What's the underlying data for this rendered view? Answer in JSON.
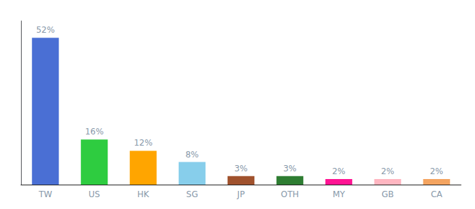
{
  "chart_data": {
    "type": "bar",
    "categories": [
      "TW",
      "US",
      "HK",
      "SG",
      "JP",
      "OTH",
      "MY",
      "GB",
      "CA"
    ],
    "values": [
      52,
      16,
      12,
      8,
      3,
      3,
      2,
      2,
      2
    ],
    "value_labels": [
      "52%",
      "16%",
      "12%",
      "8%",
      "3%",
      "3%",
      "2%",
      "2%",
      "2%"
    ],
    "colors": [
      "#4A6FD4",
      "#2ECC40",
      "#FFA500",
      "#87CEEB",
      "#A0522D",
      "#2E7D32",
      "#FF1493",
      "#FFB6C1",
      "#F4A460"
    ],
    "ylim": [
      0,
      58
    ],
    "grid": false,
    "data_labels": true,
    "tick_labels": "x"
  }
}
